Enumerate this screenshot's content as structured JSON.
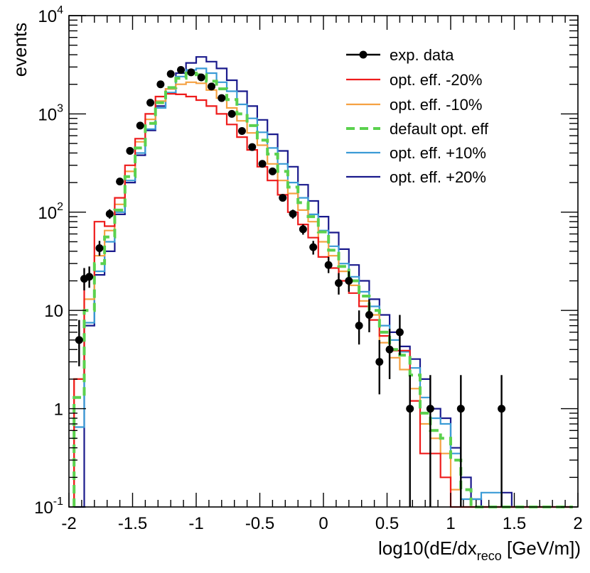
{
  "chart_data": {
    "type": "line",
    "title": "",
    "xlabel_main": "log10(dE/dx",
    "xlabel_sub": "reco",
    "xlabel_tail": " [GeV/m])",
    "ylabel": "events",
    "xlim": [
      -2,
      2
    ],
    "ylim": [
      0.1,
      10000
    ],
    "yscale": "log",
    "x_ticks": [
      {
        "value": -2,
        "label": "-2"
      },
      {
        "value": -1.5,
        "label": "-1.5"
      },
      {
        "value": -1,
        "label": "-1"
      },
      {
        "value": -0.5,
        "label": "-0.5"
      },
      {
        "value": 0,
        "label": "0"
      },
      {
        "value": 0.5,
        "label": "0.5"
      },
      {
        "value": 1,
        "label": "1"
      },
      {
        "value": 1.5,
        "label": "1.5"
      },
      {
        "value": 2,
        "label": "2"
      }
    ],
    "y_ticks": [
      {
        "value": 0.1,
        "base": "10",
        "exp": "-1"
      },
      {
        "value": 1,
        "base": "1",
        "exp": ""
      },
      {
        "value": 10,
        "base": "10",
        "exp": ""
      },
      {
        "value": 100,
        "base": "10",
        "exp": "2"
      },
      {
        "value": 1000,
        "base": "10",
        "exp": "3"
      },
      {
        "value": 10000,
        "base": "10",
        "exp": "4"
      }
    ],
    "bin_edges_start": -1.96,
    "bin_width": 0.08,
    "legend_position": "top-right",
    "data": {
      "name": "exp. data",
      "color": "#000000",
      "points": [
        {
          "x": -1.92,
          "y": 5,
          "err_lo": 2.7,
          "err_hi": 8
        },
        {
          "x": -1.88,
          "y": 21,
          "err_lo": 16,
          "err_hi": 27
        },
        {
          "x": -1.84,
          "y": 22,
          "err_lo": 17,
          "err_hi": 28
        },
        {
          "x": -1.76,
          "y": 43,
          "err_lo": 36,
          "err_hi": 51
        },
        {
          "x": -1.68,
          "y": 96,
          "err_lo": 86,
          "err_hi": 107
        },
        {
          "x": -1.6,
          "y": 205,
          "err_lo": 190,
          "err_hi": 220
        },
        {
          "x": -1.52,
          "y": 420,
          "err_lo": 400,
          "err_hi": 440
        },
        {
          "x": -1.44,
          "y": 760,
          "err_lo": 730,
          "err_hi": 790
        },
        {
          "x": -1.36,
          "y": 1300,
          "err_lo": 1260,
          "err_hi": 1340
        },
        {
          "x": -1.28,
          "y": 2000,
          "err_lo": 1950,
          "err_hi": 2050
        },
        {
          "x": -1.2,
          "y": 2550,
          "err_lo": 2500,
          "err_hi": 2600
        },
        {
          "x": -1.12,
          "y": 2800,
          "err_lo": 2750,
          "err_hi": 2850
        },
        {
          "x": -1.04,
          "y": 2650,
          "err_lo": 2600,
          "err_hi": 2700
        },
        {
          "x": -0.96,
          "y": 2350,
          "err_lo": 2300,
          "err_hi": 2400
        },
        {
          "x": -0.88,
          "y": 1900,
          "err_lo": 1850,
          "err_hi": 1950
        },
        {
          "x": -0.8,
          "y": 1450,
          "err_lo": 1410,
          "err_hi": 1490
        },
        {
          "x": -0.72,
          "y": 1000,
          "err_lo": 970,
          "err_hi": 1030
        },
        {
          "x": -0.64,
          "y": 670,
          "err_lo": 645,
          "err_hi": 695
        },
        {
          "x": -0.56,
          "y": 460,
          "err_lo": 440,
          "err_hi": 480
        },
        {
          "x": -0.48,
          "y": 310,
          "err_lo": 293,
          "err_hi": 327
        },
        {
          "x": -0.4,
          "y": 260,
          "err_lo": 244,
          "err_hi": 276
        },
        {
          "x": -0.32,
          "y": 140,
          "err_lo": 128,
          "err_hi": 152
        },
        {
          "x": -0.24,
          "y": 96,
          "err_lo": 86,
          "err_hi": 106
        },
        {
          "x": -0.16,
          "y": 67,
          "err_lo": 59,
          "err_hi": 75
        },
        {
          "x": -0.08,
          "y": 44,
          "err_lo": 37,
          "err_hi": 51
        },
        {
          "x": 0.04,
          "y": 29,
          "err_lo": 24,
          "err_hi": 35
        },
        {
          "x": 0.12,
          "y": 19,
          "err_lo": 14.5,
          "err_hi": 24
        },
        {
          "x": 0.2,
          "y": 20,
          "err_lo": 15.5,
          "err_hi": 25
        },
        {
          "x": 0.28,
          "y": 7,
          "err_lo": 4.5,
          "err_hi": 10
        },
        {
          "x": 0.36,
          "y": 9,
          "err_lo": 6,
          "err_hi": 13
        },
        {
          "x": 0.44,
          "y": 3,
          "err_lo": 1.4,
          "err_hi": 5
        },
        {
          "x": 0.52,
          "y": 4,
          "err_lo": 2,
          "err_hi": 6.5
        },
        {
          "x": 0.6,
          "y": 6,
          "err_lo": 3.5,
          "err_hi": 9
        },
        {
          "x": 0.68,
          "y": 1,
          "err_lo": 0.1,
          "err_hi": 2.2
        },
        {
          "x": 0.84,
          "y": 1,
          "err_lo": 0.1,
          "err_hi": 2.2
        },
        {
          "x": 1.08,
          "y": 1,
          "err_lo": 0.1,
          "err_hi": 2.2
        },
        {
          "x": 1.4,
          "y": 1,
          "err_lo": 0.1,
          "err_hi": 2.2
        }
      ]
    },
    "series": [
      {
        "name": "opt. eff. -20%",
        "color": "#ee1c1c",
        "dash": "",
        "width": 2.2,
        "values": [
          2,
          22,
          80,
          72,
          140,
          300,
          560,
          1000,
          1500,
          1600,
          1580,
          1500,
          1380,
          1200,
          1000,
          780,
          580,
          430,
          290,
          210,
          150,
          100,
          75,
          55,
          35,
          27,
          20,
          15,
          11,
          8,
          5.5,
          3.9,
          3.9,
          1.2,
          0.35,
          0.35,
          0.2,
          0.1,
          0.1,
          0.1,
          0.1,
          0.1,
          0.1,
          0.1,
          0.1,
          0.1,
          0.1,
          0.1,
          0.1
        ]
      },
      {
        "name": "opt. eff. -10%",
        "color": "#f5a142",
        "dash": "",
        "width": 2.2,
        "values": [
          2,
          13,
          36,
          65,
          120,
          260,
          520,
          880,
          1350,
          1800,
          2000,
          2100,
          2050,
          1750,
          1450,
          1150,
          850,
          640,
          480,
          310,
          210,
          155,
          105,
          80,
          50,
          36,
          25,
          18,
          12.5,
          9,
          4.7,
          3.3,
          2.5,
          1.6,
          0.7,
          0.5,
          0.35,
          0.15,
          0.1,
          0.1,
          0.1,
          0.1,
          0.1,
          0.1,
          0.1,
          0.1,
          0.1,
          0.1,
          0.1
        ]
      },
      {
        "name": "default opt. eff",
        "color": "#5bd14e",
        "dash": "12 7",
        "width": 4,
        "values": [
          1.3,
          10,
          30,
          56,
          105,
          230,
          450,
          800,
          1300,
          1850,
          2300,
          2600,
          2500,
          2150,
          1800,
          1400,
          1000,
          760,
          540,
          390,
          260,
          180,
          125,
          90,
          63,
          41,
          28,
          20,
          14,
          10,
          6,
          4,
          3.5,
          2.2,
          0.9,
          0.6,
          0.5,
          0.3,
          0.15,
          0.1,
          0.1,
          0.1,
          0.1,
          0.1,
          0.1,
          0.1,
          0.1,
          0.1,
          0.1
        ]
      },
      {
        "name": "opt. eff. +10%",
        "color": "#3a9bd6",
        "dash": "",
        "width": 2.2,
        "values": [
          0.65,
          7.5,
          25,
          50,
          100,
          210,
          400,
          700,
          1150,
          1650,
          2400,
          2800,
          2900,
          2600,
          2100,
          1700,
          1250,
          900,
          650,
          450,
          310,
          200,
          140,
          95,
          65,
          45,
          30,
          22,
          15.5,
          11,
          7,
          5,
          3.8,
          2.6,
          1.3,
          0.8,
          0.7,
          0.35,
          0.12,
          0.12,
          0.14,
          0.14,
          0.1,
          0.1,
          0.1,
          0.1,
          0.1,
          0.1,
          0.1
        ]
      },
      {
        "name": "opt. eff. +20%",
        "color": "#1a1a8c",
        "dash": "",
        "width": 2.2,
        "values": [
          0.1,
          7,
          23,
          40,
          95,
          200,
          380,
          680,
          1200,
          1800,
          2600,
          3300,
          3800,
          3400,
          2900,
          2200,
          1700,
          1200,
          870,
          620,
          420,
          290,
          190,
          130,
          90,
          62,
          42,
          29,
          20,
          13,
          9,
          6,
          4.3,
          3.2,
          2,
          1,
          0.8,
          0.4,
          0.2,
          0.12,
          0.1,
          0.1,
          0.14,
          0.1,
          0.1,
          0.1,
          0.1,
          0.1,
          0.1
        ]
      }
    ]
  }
}
